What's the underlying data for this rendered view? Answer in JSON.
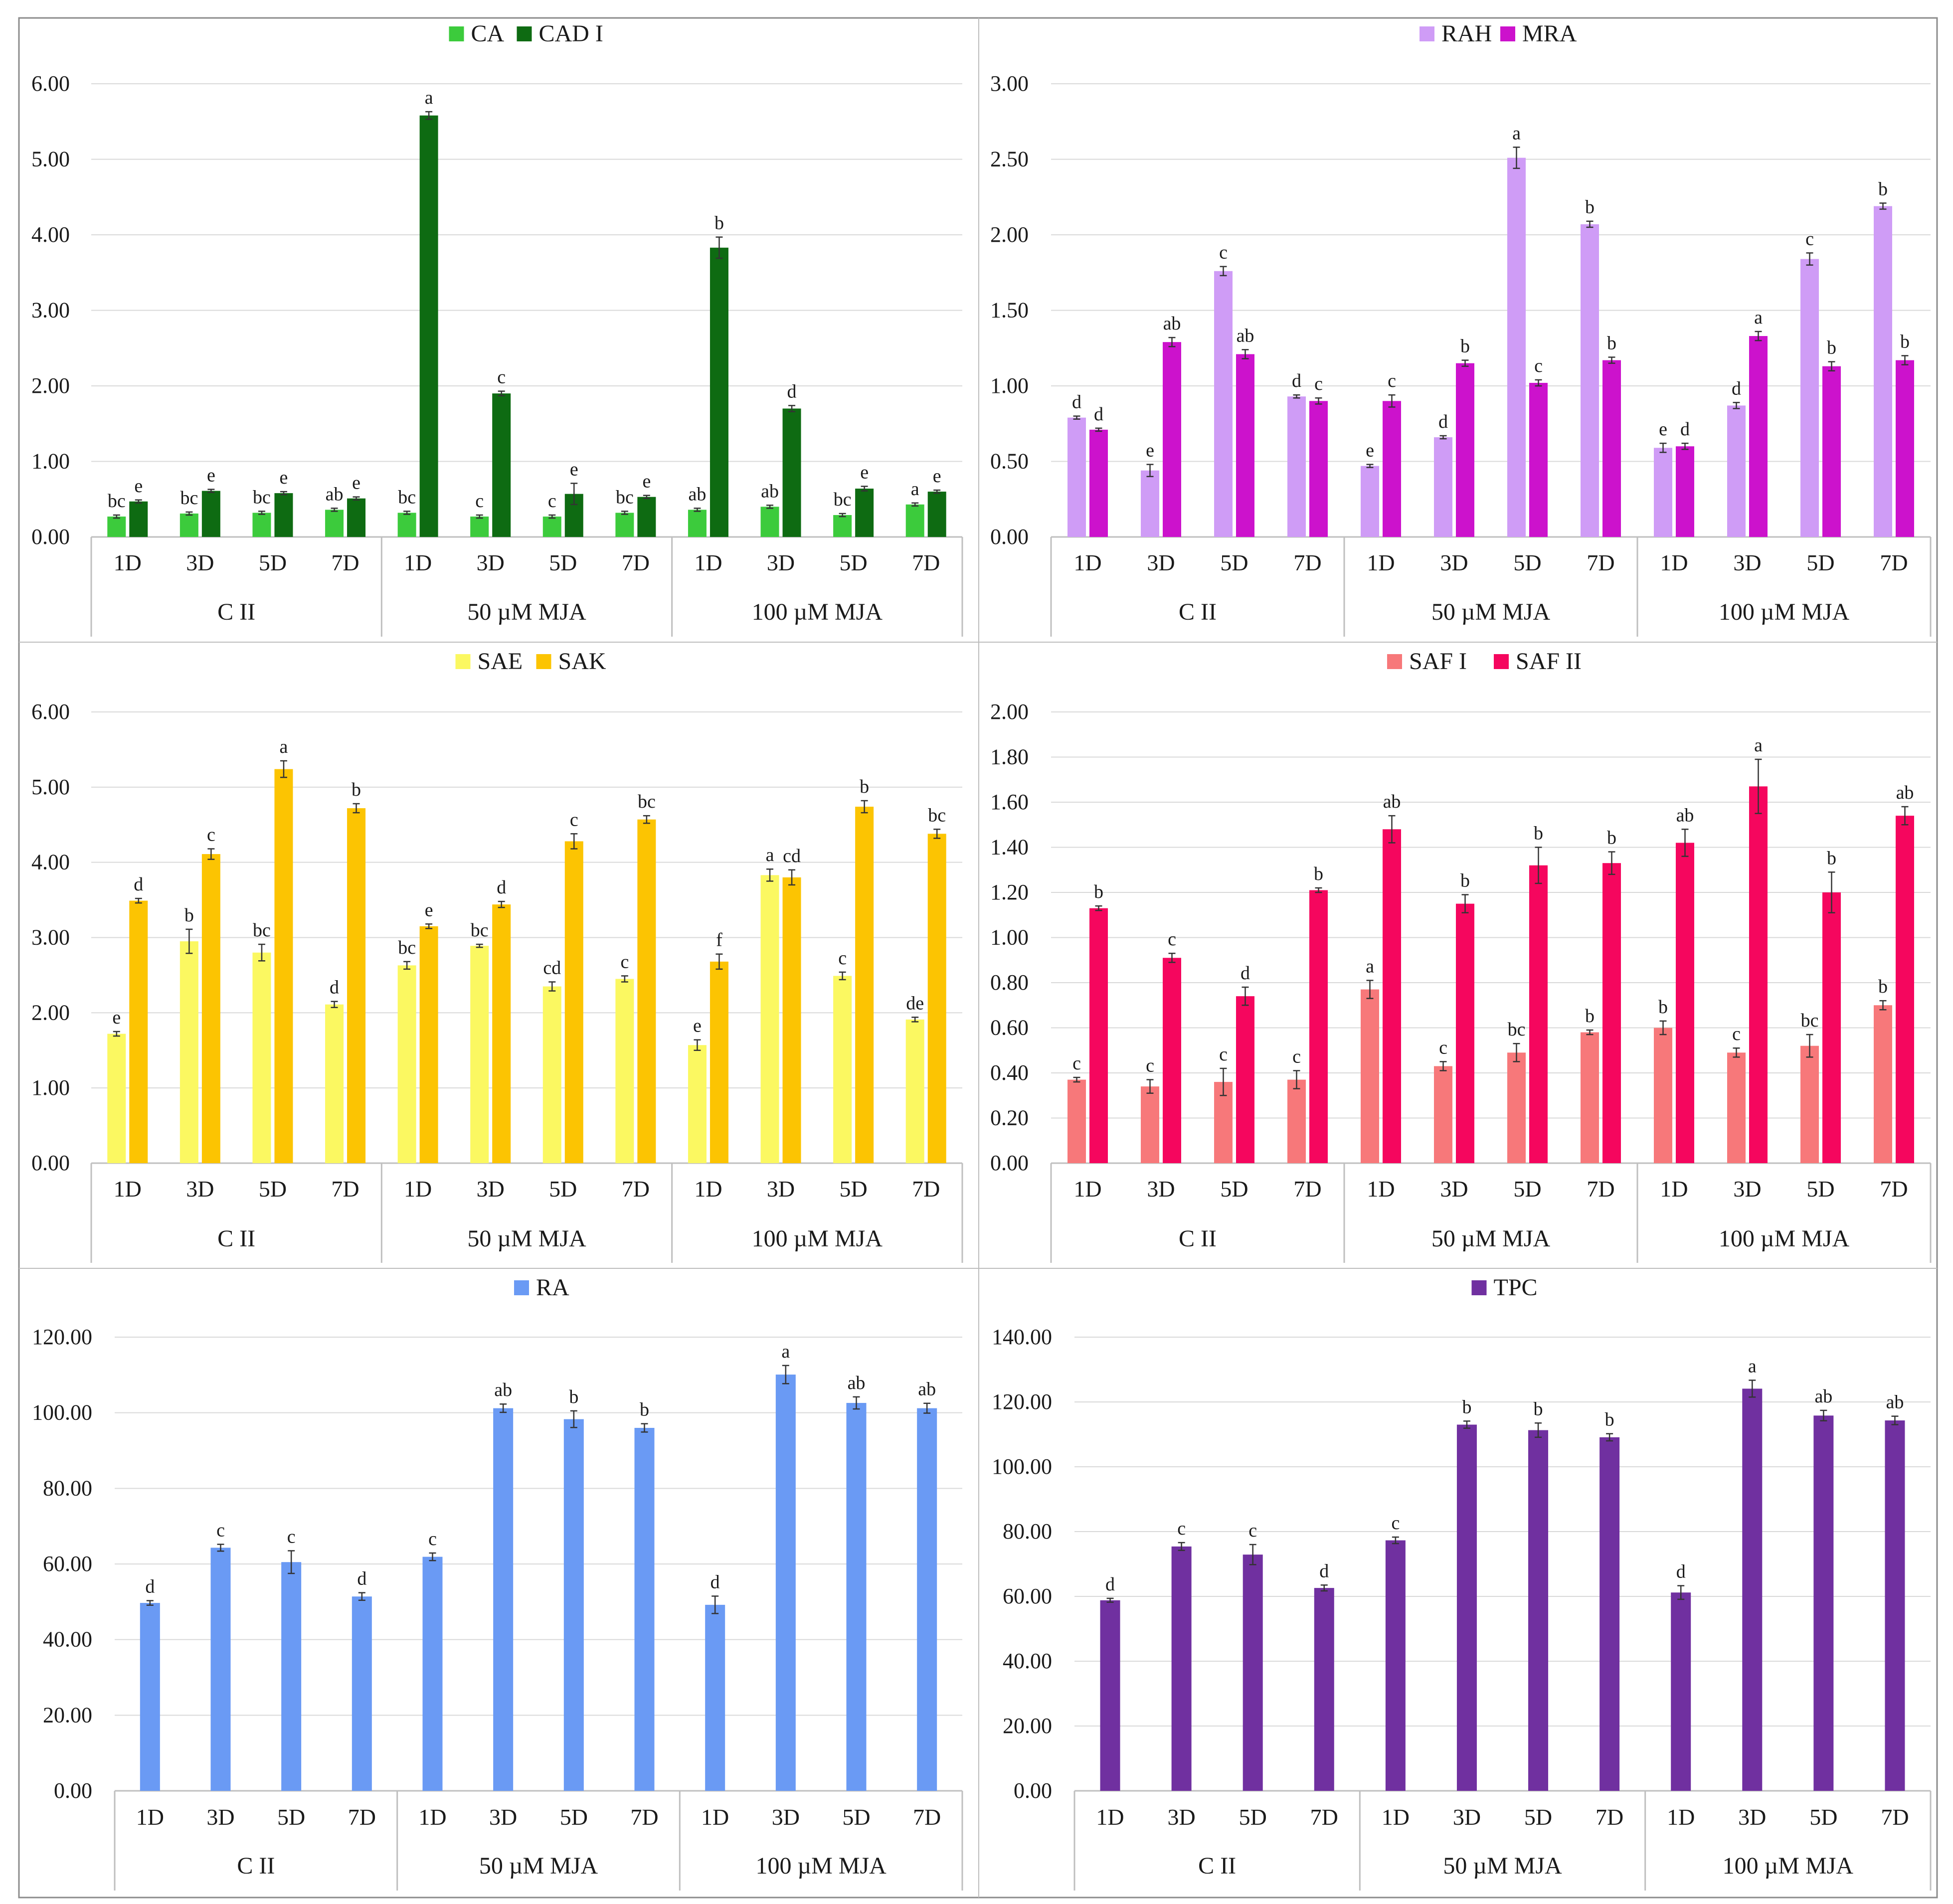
{
  "colors": {
    "CA": "#3ccb3c",
    "CAD I": "#0e6b12",
    "RAH": "#cf9cf6",
    "MRA": "#cc12cc",
    "SAE": "#fbf861",
    "SAK": "#fcc402",
    "SAF I": "#f7787a",
    "SAF II": "#f5065e",
    "RA": "#6a9af4",
    "TPC": "#7030a0"
  },
  "chart_data": [
    {
      "type": "bar",
      "legend": [
        "CA",
        "CAD I"
      ],
      "ylim": [
        0,
        6
      ],
      "yticks": [
        "0.00",
        "1.00",
        "2.00",
        "3.00",
        "4.00",
        "5.00",
        "6.00"
      ],
      "days": [
        "1D",
        "3D",
        "5D",
        "7D"
      ],
      "groups": [
        "C II",
        "50 µM MJA",
        "100 µM MJA"
      ],
      "series": [
        {
          "name": "CA",
          "values": [
            0.27,
            0.31,
            0.32,
            0.36,
            0.32,
            0.27,
            0.27,
            0.32,
            0.36,
            0.4,
            0.29,
            0.43
          ],
          "errors": [
            0.02,
            0.02,
            0.02,
            0.02,
            0.02,
            0.02,
            0.02,
            0.02,
            0.02,
            0.02,
            0.02,
            0.02
          ],
          "labels": [
            "bc",
            "bc",
            "bc",
            "ab",
            "bc",
            "c",
            "c",
            "bc",
            "ab",
            "ab",
            "bc",
            "a"
          ]
        },
        {
          "name": "CAD I",
          "values": [
            0.47,
            0.61,
            0.58,
            0.51,
            5.58,
            1.9,
            0.57,
            0.53,
            3.83,
            1.7,
            0.64,
            0.6
          ],
          "errors": [
            0.02,
            0.02,
            0.02,
            0.02,
            0.05,
            0.03,
            0.14,
            0.02,
            0.14,
            0.04,
            0.03,
            0.02
          ],
          "labels": [
            "e",
            "e",
            "e",
            "e",
            "a",
            "c",
            "e",
            "e",
            "b",
            "d",
            "e",
            "e"
          ]
        }
      ]
    },
    {
      "type": "bar",
      "legend": [
        "RAH",
        "MRA"
      ],
      "ylim": [
        0,
        3
      ],
      "yticks": [
        "0.00",
        "0.50",
        "1.00",
        "1.50",
        "2.00",
        "2.50",
        "3.00"
      ],
      "days": [
        "1D",
        "3D",
        "5D",
        "7D"
      ],
      "groups": [
        "C II",
        "50 µM MJA",
        "100 µM MJA"
      ],
      "series": [
        {
          "name": "RAH",
          "values": [
            0.79,
            0.44,
            1.76,
            0.93,
            0.47,
            0.66,
            2.51,
            2.07,
            0.59,
            0.87,
            1.84,
            2.19
          ],
          "errors": [
            0.01,
            0.04,
            0.03,
            0.01,
            0.01,
            0.01,
            0.07,
            0.02,
            0.03,
            0.02,
            0.04,
            0.02
          ],
          "labels": [
            "d",
            "e",
            "c",
            "d",
            "e",
            "d",
            "a",
            "b",
            "e",
            "d",
            "c",
            "b"
          ]
        },
        {
          "name": "MRA",
          "values": [
            0.71,
            1.29,
            1.21,
            0.9,
            0.9,
            1.15,
            1.02,
            1.17,
            0.6,
            1.33,
            1.13,
            1.17
          ],
          "errors": [
            0.01,
            0.03,
            0.03,
            0.02,
            0.04,
            0.02,
            0.02,
            0.02,
            0.02,
            0.03,
            0.03,
            0.03
          ],
          "labels": [
            "d",
            "ab",
            "ab",
            "c",
            "c",
            "b",
            "c",
            "b",
            "d",
            "a",
            "b",
            "b"
          ]
        }
      ]
    },
    {
      "type": "bar",
      "legend": [
        "SAE",
        "SAK"
      ],
      "ylim": [
        0,
        6
      ],
      "yticks": [
        "0.00",
        "1.00",
        "2.00",
        "3.00",
        "4.00",
        "5.00",
        "6.00"
      ],
      "days": [
        "1D",
        "3D",
        "5D",
        "7D"
      ],
      "groups": [
        "C II",
        "50 µM MJA",
        "100 µM MJA"
      ],
      "series": [
        {
          "name": "SAE",
          "values": [
            1.72,
            2.95,
            2.8,
            2.11,
            2.63,
            2.89,
            2.35,
            2.45,
            1.57,
            3.83,
            2.49,
            1.91
          ],
          "errors": [
            0.03,
            0.16,
            0.11,
            0.04,
            0.05,
            0.02,
            0.06,
            0.04,
            0.07,
            0.08,
            0.05,
            0.03
          ],
          "labels": [
            "e",
            "b",
            "bc",
            "d",
            "bc",
            "bc",
            "cd",
            "c",
            "e",
            "a",
            "c",
            "de"
          ]
        },
        {
          "name": "SAK",
          "values": [
            3.49,
            4.11,
            5.24,
            4.72,
            3.15,
            3.44,
            4.28,
            4.57,
            2.68,
            3.8,
            4.74,
            4.38
          ],
          "errors": [
            0.03,
            0.07,
            0.11,
            0.06,
            0.03,
            0.04,
            0.1,
            0.05,
            0.1,
            0.1,
            0.08,
            0.06
          ],
          "labels": [
            "d",
            "c",
            "a",
            "b",
            "e",
            "d",
            "c",
            "bc",
            "f",
            "cd",
            "b",
            "bc"
          ]
        }
      ]
    },
    {
      "type": "bar",
      "legend": [
        "SAF I",
        "SAF II"
      ],
      "ylim": [
        0,
        2
      ],
      "yticks": [
        "0.00",
        "0.20",
        "0.40",
        "0.60",
        "0.80",
        "1.00",
        "1.20",
        "1.40",
        "1.60",
        "1.80",
        "2.00"
      ],
      "days": [
        "1D",
        "3D",
        "5D",
        "7D"
      ],
      "groups": [
        "C II",
        "50 µM MJA",
        "100 µM MJA"
      ],
      "series": [
        {
          "name": "SAF I",
          "values": [
            0.37,
            0.34,
            0.36,
            0.37,
            0.77,
            0.43,
            0.49,
            0.58,
            0.6,
            0.49,
            0.52,
            0.7
          ],
          "errors": [
            0.01,
            0.03,
            0.06,
            0.04,
            0.04,
            0.02,
            0.04,
            0.01,
            0.03,
            0.02,
            0.05,
            0.02
          ],
          "labels": [
            "c",
            "c",
            "c",
            "c",
            "a",
            "c",
            "bc",
            "b",
            "b",
            "c",
            "bc",
            "b"
          ]
        },
        {
          "name": "SAF II",
          "values": [
            1.13,
            0.91,
            0.74,
            1.21,
            1.48,
            1.15,
            1.32,
            1.33,
            1.42,
            1.67,
            1.2,
            1.54
          ],
          "errors": [
            0.01,
            0.02,
            0.04,
            0.01,
            0.06,
            0.04,
            0.08,
            0.05,
            0.06,
            0.12,
            0.09,
            0.04
          ],
          "labels": [
            "b",
            "c",
            "d",
            "b",
            "ab",
            "b",
            "b",
            "b",
            "ab",
            "a",
            "b",
            "ab"
          ]
        }
      ]
    },
    {
      "type": "bar",
      "legend": [
        "RA"
      ],
      "ylim": [
        0,
        120
      ],
      "yticks": [
        "0.00",
        "20.00",
        "40.00",
        "60.00",
        "80.00",
        "100.00",
        "120.00"
      ],
      "days": [
        "1D",
        "3D",
        "5D",
        "7D"
      ],
      "groups": [
        "C II",
        "50 µM MJA",
        "100 µM MJA"
      ],
      "series": [
        {
          "name": "RA",
          "values": [
            49.7,
            64.3,
            60.5,
            51.4,
            61.9,
            101.2,
            98.3,
            96.0,
            49.2,
            110.1,
            102.6,
            101.2
          ],
          "errors": [
            0.6,
            0.9,
            3.0,
            1.0,
            1.0,
            1.1,
            2.2,
            1.1,
            2.3,
            2.4,
            1.6,
            1.3
          ],
          "labels": [
            "d",
            "c",
            "c",
            "d",
            "c",
            "ab",
            "b",
            "b",
            "d",
            "a",
            "ab",
            "ab"
          ]
        }
      ]
    },
    {
      "type": "bar",
      "legend": [
        "TPC"
      ],
      "ylim": [
        0,
        140
      ],
      "yticks": [
        "0.00",
        "20.00",
        "40.00",
        "60.00",
        "80.00",
        "100.00",
        "120.00",
        "140.00"
      ],
      "days": [
        "1D",
        "3D",
        "5D",
        "7D"
      ],
      "groups": [
        "C II",
        "50 µM MJA",
        "100 µM MJA"
      ],
      "series": [
        {
          "name": "TPC",
          "values": [
            58.8,
            75.4,
            72.9,
            62.6,
            77.3,
            113.0,
            111.3,
            109.1,
            61.2,
            124.1,
            115.8,
            114.3
          ],
          "errors": [
            0.6,
            1.2,
            3.1,
            0.9,
            1.0,
            1.1,
            2.2,
            1.1,
            2.1,
            2.6,
            1.6,
            1.3
          ],
          "labels": [
            "d",
            "c",
            "c",
            "d",
            "c",
            "b",
            "b",
            "b",
            "d",
            "a",
            "ab",
            "ab"
          ]
        }
      ]
    }
  ]
}
